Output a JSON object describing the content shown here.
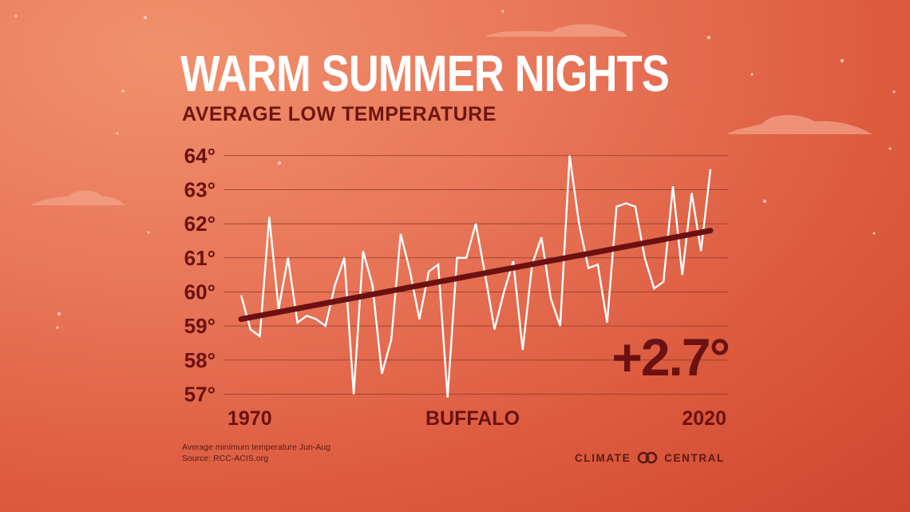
{
  "header": {
    "title": "WARM SUMMER NIGHTS",
    "subtitle": "AVERAGE LOW TEMPERATURE"
  },
  "chart_data": {
    "type": "line",
    "location": "BUFFALO",
    "x_label_start": "1970",
    "x_label_end": "2020",
    "x": [
      1970,
      1971,
      1972,
      1973,
      1974,
      1975,
      1976,
      1977,
      1978,
      1979,
      1980,
      1981,
      1982,
      1983,
      1984,
      1985,
      1986,
      1987,
      1988,
      1989,
      1990,
      1991,
      1992,
      1993,
      1994,
      1995,
      1996,
      1997,
      1998,
      1999,
      2000,
      2001,
      2002,
      2003,
      2004,
      2005,
      2006,
      2007,
      2008,
      2009,
      2010,
      2011,
      2012,
      2013,
      2014,
      2015,
      2016,
      2017,
      2018,
      2019,
      2020
    ],
    "values": [
      59.9,
      58.9,
      58.7,
      62.2,
      59.5,
      61.0,
      59.1,
      59.3,
      59.2,
      59.0,
      60.2,
      61.0,
      57.0,
      61.2,
      60.2,
      57.6,
      58.6,
      61.7,
      60.6,
      59.2,
      60.6,
      60.8,
      56.9,
      61.0,
      61.0,
      62.0,
      60.5,
      58.9,
      60.0,
      60.9,
      58.3,
      60.8,
      61.6,
      59.8,
      59.0,
      64.0,
      62.0,
      60.7,
      60.8,
      59.1,
      62.5,
      62.6,
      62.5,
      61.0,
      60.1,
      60.3,
      63.1,
      60.5,
      62.9,
      61.2,
      63.6
    ],
    "trend": {
      "start": 59.2,
      "end": 61.8
    },
    "trend_label": "+2.7°",
    "y_ticks": [
      "64°",
      "63°",
      "62°",
      "61°",
      "60°",
      "59°",
      "58°",
      "57°"
    ],
    "y_tick_values": [
      64,
      63,
      62,
      61,
      60,
      59,
      58,
      57
    ],
    "ylim": [
      56.8,
      64.3
    ],
    "grid": true,
    "colors": {
      "series": "#ffffff",
      "trend": "#6b1111",
      "grid": "#8f3a2a",
      "labels": "#6b1111"
    }
  },
  "footer": {
    "note_line1": "Average minimum temperature Jun-Aug",
    "note_line2": "Source:  RCC-ACIS.org",
    "brand_left": "CLIMATE",
    "brand_right": "CENTRAL"
  },
  "decor": {
    "moon": "crescent-moon",
    "clouds": "cloud",
    "stars": "star"
  }
}
